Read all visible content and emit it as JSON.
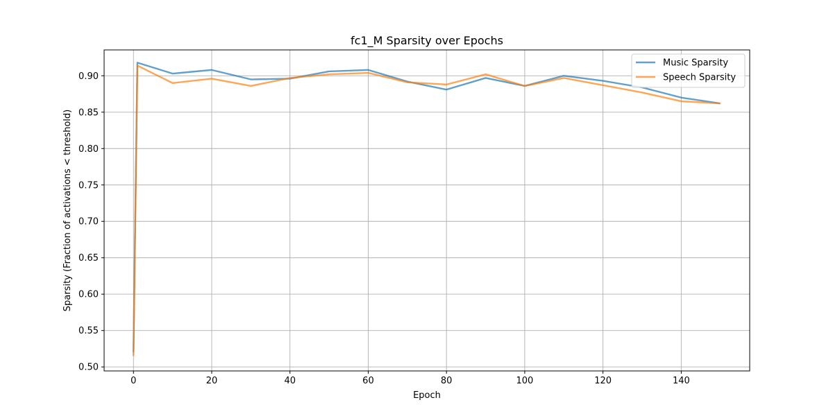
{
  "chart_data": {
    "type": "line",
    "title": "fc1_M Sparsity over Epochs",
    "xlabel": "Epoch",
    "ylabel": "Sparsity (Fraction of activations < threshold)",
    "xlim": [
      -7.5,
      157.5
    ],
    "ylim": [
      0.4945,
      0.9355
    ],
    "xticks": [
      0,
      20,
      40,
      60,
      80,
      100,
      120,
      140
    ],
    "yticks": [
      0.5,
      0.55,
      0.6,
      0.65,
      0.7,
      0.75,
      0.8,
      0.85,
      0.9
    ],
    "xtick_labels": [
      "0",
      "20",
      "40",
      "60",
      "80",
      "100",
      "120",
      "140"
    ],
    "ytick_labels": [
      "0.50",
      "0.55",
      "0.60",
      "0.65",
      "0.70",
      "0.75",
      "0.80",
      "0.85",
      "0.90"
    ],
    "grid": true,
    "legend_position": "top-right",
    "x": [
      0,
      1,
      10,
      20,
      30,
      40,
      50,
      60,
      70,
      80,
      90,
      100,
      110,
      120,
      130,
      140,
      150
    ],
    "series": [
      {
        "name": "Music Sparsity",
        "color": "#1f77b4",
        "values": [
          0.52,
          0.918,
          0.903,
          0.908,
          0.895,
          0.896,
          0.906,
          0.908,
          0.892,
          0.881,
          0.897,
          0.886,
          0.9,
          0.893,
          0.884,
          0.87,
          0.862
        ]
      },
      {
        "name": "Speech Sparsity",
        "color": "#ff7f0e",
        "values": [
          0.515,
          0.914,
          0.89,
          0.896,
          0.886,
          0.897,
          0.902,
          0.904,
          0.891,
          0.888,
          0.902,
          0.886,
          0.897,
          0.887,
          0.877,
          0.865,
          0.862
        ]
      }
    ]
  }
}
